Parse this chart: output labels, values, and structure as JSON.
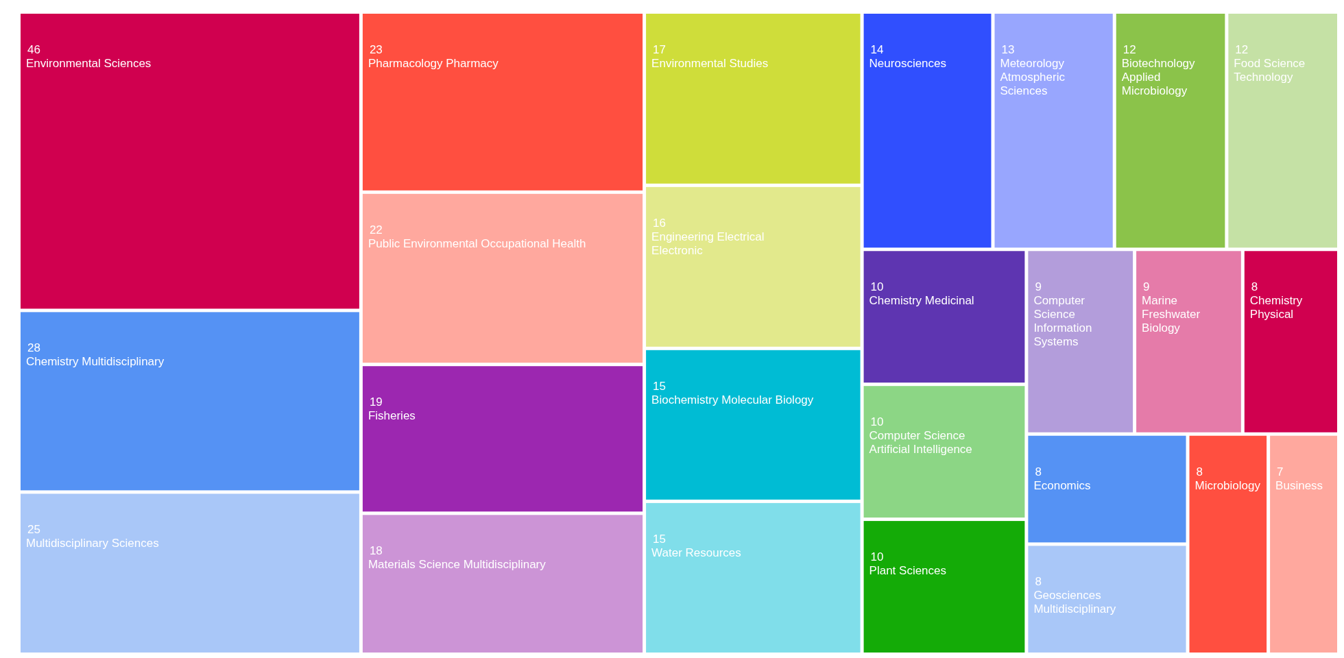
{
  "chart_data": {
    "type": "other",
    "data_labels": true,
    "categories": [
      "Environmental Sciences",
      "Chemistry Multidisciplinary",
      "Multidisciplinary Sciences",
      "Pharmacology Pharmacy",
      "Public Environmental Occupational Health",
      "Fisheries",
      "Materials Science Multidisciplinary",
      "Environmental Studies",
      "Engineering Electrical Electronic",
      "Biochemistry Molecular Biology",
      "Water Resources",
      "Neurosciences",
      "Meteorology Atmospheric Sciences",
      "Biotechnology Applied Microbiology",
      "Food Science Technology",
      "Chemistry Medicinal",
      "Computer Science Artificial Intelligence",
      "Plant Sciences",
      "Computer Science Information Systems",
      "Marine Freshwater Biology",
      "Chemistry Physical",
      "Economics",
      "Geosciences Multidisciplinary",
      "Microbiology",
      "Business"
    ],
    "values": [
      46,
      28,
      25,
      23,
      22,
      19,
      18,
      17,
      16,
      15,
      15,
      14,
      13,
      12,
      12,
      10,
      10,
      10,
      9,
      9,
      8,
      8,
      8,
      8,
      7
    ],
    "colors": [
      "#d0004f",
      "#5592f4",
      "#a9c7f8",
      "#ff4f40",
      "#ffa89e",
      "#9c27b0",
      "#cc94d6",
      "#cfdd3a",
      "#e2e98c",
      "#00bcd4",
      "#80deea",
      "#304ffe",
      "#98a6fe",
      "#8bc34a",
      "#c5e1a5",
      "#5e35b1",
      "#8cd685",
      "#14ab07",
      "#b39ddb",
      "#e57ba9",
      "#d0004f",
      "#5592f4",
      "#a9c7f8",
      "#ff4f40",
      "#ffa89e"
    ]
  }
}
